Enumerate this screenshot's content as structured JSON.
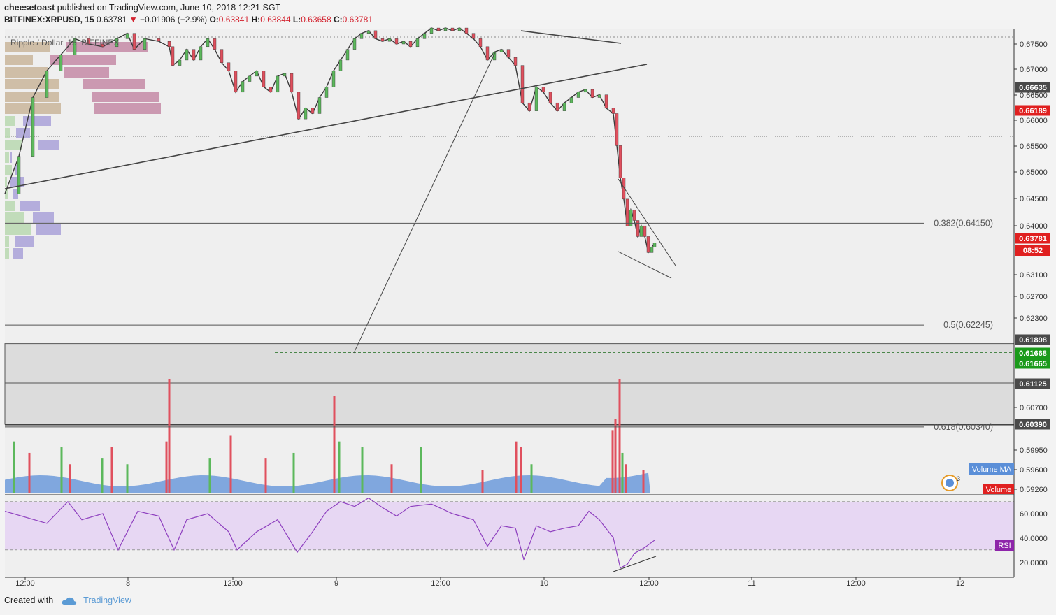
{
  "header": {
    "author": "cheesetoast",
    "published": "published on TradingView.com, June 10, 2018 12:21 SGT",
    "symbol": "BITFINEX:XRPUSD, 15",
    "last": "0.63781",
    "change": "−0.01906 (−2.9%)",
    "open_label": "O:",
    "open": "0.63841",
    "high_label": "H:",
    "high": "0.63844",
    "low_label": "L:",
    "low": "0.63658",
    "close_label": "C:",
    "close": "0.63781"
  },
  "series_label": "Ripple / Dollar, 15, BITFINEX",
  "footer": {
    "created_with": "Created with",
    "brand": "TradingView"
  },
  "colors": {
    "up": "#26a69a",
    "down": "#d3232f",
    "volume_ma": "#5b8fd8",
    "rsi_line": "#8e3fbf",
    "rsi_band": "#e7d7f3",
    "zone": "#dcdcdc",
    "green_label": "#1a9a1a",
    "red_label": "#e02020",
    "dark_label": "#4a4a4a"
  },
  "chart_data": {
    "type": "line",
    "title": "Ripple / Dollar, 15, BITFINEX",
    "price_axis": {
      "ylim": [
        0.5905,
        0.6782
      ],
      "ticks": [
        "0.67500",
        "0.67000",
        "0.66500",
        "0.66000",
        "0.65500",
        "0.65000",
        "0.64500",
        "0.64000",
        "0.63100",
        "0.62700",
        "0.62300",
        "0.60700",
        "0.59950",
        "0.59600",
        "0.59260"
      ]
    },
    "time_axis": {
      "ticks": [
        "12:00",
        "8",
        "12:00",
        "9",
        "12:00",
        "10",
        "12:00",
        "11",
        "12:00",
        "12"
      ]
    },
    "price_labels": [
      {
        "value": 0.66635,
        "text": "0.66635",
        "kind": "dark"
      },
      {
        "value": 0.66189,
        "text": "0.66189",
        "kind": "red"
      },
      {
        "value": 0.63781,
        "text": "0.63781",
        "kind": "red"
      },
      {
        "value": 0.61898,
        "text": "0.61898",
        "kind": "dark"
      },
      {
        "value": 0.61668,
        "text": "0.61668",
        "kind": "green"
      },
      {
        "value": 0.61665,
        "text": "0.61665",
        "kind": "green"
      },
      {
        "value": 0.61125,
        "text": "0.61125",
        "kind": "dark"
      },
      {
        "value": 0.6039,
        "text": "0.60390",
        "kind": "dark"
      }
    ],
    "countdown": "08:52",
    "fib_levels": [
      {
        "label": "0.382(0.64150)",
        "value": 0.6415
      },
      {
        "label": "0.5(0.62245)",
        "value": 0.62245
      },
      {
        "label": "0.618(0.60340)",
        "value": 0.6034
      }
    ],
    "support_zone": [
      0.6039,
      0.61898
    ],
    "volume_label": "Volume",
    "volume_ma_label": "Volume MA",
    "price_path": [
      [
        0,
        0.647
      ],
      [
        20,
        0.654
      ],
      [
        40,
        0.665
      ],
      [
        60,
        0.67
      ],
      [
        80,
        0.673
      ],
      [
        100,
        0.676
      ],
      [
        120,
        0.675
      ],
      [
        140,
        0.6745
      ],
      [
        160,
        0.676
      ],
      [
        175,
        0.677
      ],
      [
        185,
        0.674
      ],
      [
        200,
        0.676
      ],
      [
        220,
        0.6755
      ],
      [
        235,
        0.6745
      ],
      [
        240,
        0.671
      ],
      [
        250,
        0.672
      ],
      [
        260,
        0.674
      ],
      [
        270,
        0.672
      ],
      [
        280,
        0.6745
      ],
      [
        290,
        0.676
      ],
      [
        300,
        0.674
      ],
      [
        310,
        0.6715
      ],
      [
        320,
        0.67
      ],
      [
        330,
        0.666
      ],
      [
        340,
        0.668
      ],
      [
        350,
        0.669
      ],
      [
        360,
        0.67
      ],
      [
        370,
        0.667
      ],
      [
        380,
        0.666
      ],
      [
        390,
        0.669
      ],
      [
        400,
        0.6695
      ],
      [
        410,
        0.666
      ],
      [
        420,
        0.661
      ],
      [
        430,
        0.663
      ],
      [
        440,
        0.662
      ],
      [
        450,
        0.665
      ],
      [
        460,
        0.667
      ],
      [
        470,
        0.67
      ],
      [
        480,
        0.672
      ],
      [
        490,
        0.674
      ],
      [
        500,
        0.676
      ],
      [
        510,
        0.677
      ],
      [
        520,
        0.6775
      ],
      [
        530,
        0.676
      ],
      [
        540,
        0.6755
      ],
      [
        550,
        0.676
      ],
      [
        560,
        0.675
      ],
      [
        570,
        0.6755
      ],
      [
        580,
        0.6745
      ],
      [
        590,
        0.676
      ],
      [
        600,
        0.677
      ],
      [
        610,
        0.678
      ],
      [
        620,
        0.6775
      ],
      [
        630,
        0.678
      ],
      [
        640,
        0.6775
      ],
      [
        650,
        0.678
      ],
      [
        660,
        0.677
      ],
      [
        670,
        0.676
      ],
      [
        680,
        0.6745
      ],
      [
        690,
        0.672
      ],
      [
        700,
        0.6735
      ],
      [
        710,
        0.674
      ],
      [
        720,
        0.6725
      ],
      [
        730,
        0.671
      ],
      [
        740,
        0.664
      ],
      [
        750,
        0.6625
      ],
      [
        760,
        0.667
      ],
      [
        770,
        0.666
      ],
      [
        780,
        0.664
      ],
      [
        790,
        0.6625
      ],
      [
        800,
        0.664
      ],
      [
        810,
        0.665
      ],
      [
        820,
        0.666
      ],
      [
        830,
        0.6665
      ],
      [
        840,
        0.665
      ],
      [
        850,
        0.6655
      ],
      [
        860,
        0.663
      ],
      [
        870,
        0.662
      ],
      [
        875,
        0.656
      ],
      [
        880,
        0.65
      ],
      [
        885,
        0.646
      ],
      [
        890,
        0.641
      ],
      [
        895,
        0.644
      ],
      [
        900,
        0.642
      ],
      [
        905,
        0.639
      ],
      [
        910,
        0.641
      ],
      [
        915,
        0.639
      ],
      [
        920,
        0.636
      ],
      [
        925,
        0.637
      ],
      [
        929,
        0.6378
      ]
    ],
    "volume_bars": [
      {
        "x": 20,
        "v": 0.45,
        "c": "up"
      },
      {
        "x": 42,
        "v": 0.35,
        "c": "down"
      },
      {
        "x": 88,
        "v": 0.4,
        "c": "up"
      },
      {
        "x": 100,
        "v": 0.25,
        "c": "down"
      },
      {
        "x": 146,
        "v": 0.3,
        "c": "up"
      },
      {
        "x": 160,
        "v": 0.4,
        "c": "down"
      },
      {
        "x": 182,
        "v": 0.25,
        "c": "up"
      },
      {
        "x": 242,
        "v": 1.0,
        "c": "down"
      },
      {
        "x": 238,
        "v": 0.45,
        "c": "down"
      },
      {
        "x": 300,
        "v": 0.3,
        "c": "up"
      },
      {
        "x": 330,
        "v": 0.5,
        "c": "down"
      },
      {
        "x": 380,
        "v": 0.3,
        "c": "down"
      },
      {
        "x": 420,
        "v": 0.35,
        "c": "up"
      },
      {
        "x": 478,
        "v": 0.85,
        "c": "down"
      },
      {
        "x": 485,
        "v": 0.45,
        "c": "up"
      },
      {
        "x": 518,
        "v": 0.4,
        "c": "up"
      },
      {
        "x": 560,
        "v": 0.25,
        "c": "down"
      },
      {
        "x": 602,
        "v": 0.4,
        "c": "up"
      },
      {
        "x": 690,
        "v": 0.2,
        "c": "down"
      },
      {
        "x": 738,
        "v": 0.45,
        "c": "down"
      },
      {
        "x": 745,
        "v": 0.4,
        "c": "down"
      },
      {
        "x": 760,
        "v": 0.25,
        "c": "up"
      },
      {
        "x": 876,
        "v": 0.55,
        "c": "down"
      },
      {
        "x": 880,
        "v": 0.65,
        "c": "down"
      },
      {
        "x": 886,
        "v": 1.0,
        "c": "down"
      },
      {
        "x": 890,
        "v": 0.35,
        "c": "up"
      },
      {
        "x": 895,
        "v": 0.25,
        "c": "down"
      },
      {
        "x": 920,
        "v": 0.2,
        "c": "down"
      }
    ],
    "rsi": {
      "label": "RSI",
      "ticks": [
        "60.0000",
        "40.0000",
        "20.0000"
      ],
      "band": [
        30,
        70
      ],
      "ylim": [
        10,
        75
      ],
      "values": [
        [
          0,
          62
        ],
        [
          30,
          57
        ],
        [
          60,
          52
        ],
        [
          90,
          70
        ],
        [
          110,
          55
        ],
        [
          140,
          60
        ],
        [
          162,
          30
        ],
        [
          190,
          62
        ],
        [
          220,
          58
        ],
        [
          242,
          30
        ],
        [
          260,
          55
        ],
        [
          290,
          60
        ],
        [
          320,
          45
        ],
        [
          332,
          30
        ],
        [
          360,
          45
        ],
        [
          390,
          55
        ],
        [
          418,
          28
        ],
        [
          440,
          45
        ],
        [
          460,
          62
        ],
        [
          480,
          70
        ],
        [
          500,
          66
        ],
        [
          520,
          73
        ],
        [
          540,
          65
        ],
        [
          560,
          58
        ],
        [
          580,
          66
        ],
        [
          610,
          68
        ],
        [
          640,
          60
        ],
        [
          670,
          55
        ],
        [
          690,
          33
        ],
        [
          710,
          50
        ],
        [
          730,
          48
        ],
        [
          742,
          22
        ],
        [
          760,
          50
        ],
        [
          780,
          45
        ],
        [
          800,
          48
        ],
        [
          820,
          50
        ],
        [
          835,
          62
        ],
        [
          850,
          55
        ],
        [
          870,
          40
        ],
        [
          880,
          15
        ],
        [
          890,
          18
        ],
        [
          900,
          27
        ],
        [
          915,
          32
        ],
        [
          929,
          38
        ]
      ]
    }
  }
}
